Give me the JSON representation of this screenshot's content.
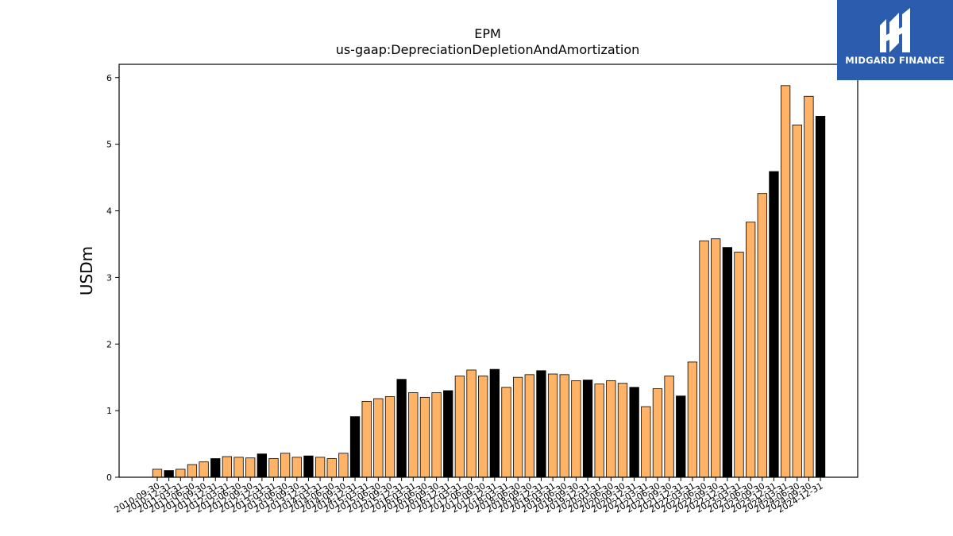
{
  "logo": {
    "text": "MIDGARD FINANCE",
    "icon": "midgard-logo-icon",
    "background": "#2b5cad"
  },
  "chart_data": {
    "type": "bar",
    "title": "EPM",
    "subtitle": "us-gaap:DepreciationDepletionAndAmortization",
    "ylabel": "USDm",
    "xlabel": "",
    "ylim": [
      0,
      6.2
    ],
    "yticks": [
      0,
      1,
      2,
      3,
      4,
      5,
      6
    ],
    "grid": false,
    "colors": {
      "quarterly": "#ffb366",
      "annual": "#000000",
      "edge": "#000000"
    },
    "categories": [
      "2010-09-30",
      "2010-12-31",
      "2011-03-31",
      "2011-06-30",
      "2011-09-30",
      "2011-12-31",
      "2012-03-31",
      "2012-06-30",
      "2012-09-30",
      "2012-12-31",
      "2013-03-31",
      "2013-06-30",
      "2013-09-30",
      "2013-12-31",
      "2014-03-31",
      "2014-06-30",
      "2014-09-30",
      "2014-12-31",
      "2015-03-31",
      "2015-06-30",
      "2015-09-30",
      "2015-12-31",
      "2016-03-31",
      "2016-06-30",
      "2016-09-30",
      "2016-12-31",
      "2017-03-31",
      "2017-06-30",
      "2017-09-30",
      "2017-12-31",
      "2018-03-31",
      "2018-06-30",
      "2018-09-30",
      "2018-12-31",
      "2019-03-31",
      "2019-06-30",
      "2019-09-30",
      "2019-12-31",
      "2020-03-31",
      "2020-06-30",
      "2020-09-30",
      "2020-12-31",
      "2021-03-31",
      "2021-06-30",
      "2021-09-30",
      "2021-12-31",
      "2022-03-31",
      "2022-06-30",
      "2022-09-30",
      "2022-12-31",
      "2023-03-31",
      "2023-06-30",
      "2023-09-30",
      "2023-12-31",
      "2024-03-31",
      "2024-06-30",
      "2024-09-30",
      "2024-12-31"
    ],
    "values": [
      0.12,
      0.1,
      0.12,
      0.19,
      0.23,
      0.28,
      0.31,
      0.3,
      0.29,
      0.35,
      0.28,
      0.36,
      0.3,
      0.32,
      0.3,
      0.28,
      0.36,
      0.91,
      1.14,
      1.18,
      1.21,
      1.47,
      1.27,
      1.2,
      1.27,
      1.3,
      1.52,
      1.61,
      1.52,
      1.62,
      1.35,
      1.5,
      1.54,
      1.6,
      1.55,
      1.54,
      1.45,
      1.46,
      1.4,
      1.45,
      1.41,
      1.35,
      1.06,
      1.33,
      1.52,
      1.22,
      1.73,
      3.55,
      3.58,
      3.45,
      3.38,
      3.83,
      4.26,
      4.59,
      5.88,
      5.29,
      5.72,
      5.42
    ],
    "annual": [
      false,
      true,
      false,
      false,
      false,
      true,
      false,
      false,
      false,
      true,
      false,
      false,
      false,
      true,
      false,
      false,
      false,
      true,
      false,
      false,
      false,
      true,
      false,
      false,
      false,
      true,
      false,
      false,
      false,
      true,
      false,
      false,
      false,
      true,
      false,
      false,
      false,
      true,
      false,
      false,
      false,
      true,
      false,
      false,
      false,
      true,
      false,
      false,
      false,
      true,
      false,
      false,
      false,
      true,
      false,
      false,
      false,
      true
    ]
  }
}
